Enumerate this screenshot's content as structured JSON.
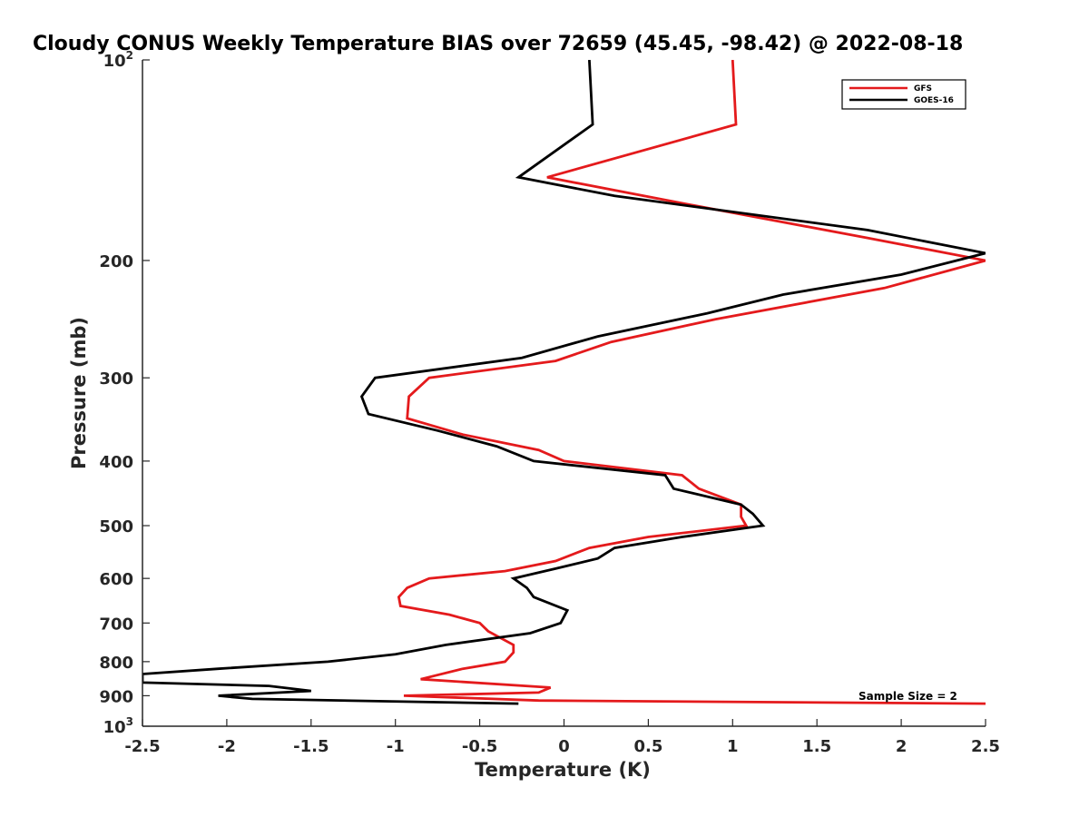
{
  "chart_data": {
    "type": "line",
    "title": "Cloudy CONUS Weekly Temperature BIAS over 72659 (45.45, -98.42) @ 2022-08-18",
    "xlabel": "Temperature (K)",
    "ylabel": "Pressure (mb)",
    "xlim": [
      -2.5,
      2.5
    ],
    "ylim": [
      100,
      1000
    ],
    "yscale": "log",
    "yreversed": true,
    "grid": false,
    "legend_position": "top-right",
    "x_ticks": [
      "-2.5",
      "-2",
      "-1.5",
      "-1",
      "-0.5",
      "0",
      "0.5",
      "1",
      "1.5",
      "2",
      "2.5"
    ],
    "x_tick_values": [
      -2.5,
      -2,
      -1.5,
      -1,
      -0.5,
      0,
      0.5,
      1,
      1.5,
      2,
      2.5
    ],
    "y_ticks": [
      {
        "value": 100,
        "label": "10",
        "exp": "2"
      },
      {
        "value": 200,
        "label": "200"
      },
      {
        "value": 300,
        "label": "300"
      },
      {
        "value": 400,
        "label": "400"
      },
      {
        "value": 500,
        "label": "500"
      },
      {
        "value": 600,
        "label": "600"
      },
      {
        "value": 700,
        "label": "700"
      },
      {
        "value": 800,
        "label": "800"
      },
      {
        "value": 900,
        "label": "900"
      },
      {
        "value": 1000,
        "label": "10",
        "exp": "3"
      }
    ],
    "annotation": "Sample Size = 2",
    "series": [
      {
        "name": "GFS",
        "color": "#e41a1c",
        "points": [
          [
            1.0,
            100
          ],
          [
            1.02,
            125
          ],
          [
            -0.1,
            150
          ],
          [
            0.75,
            165
          ],
          [
            1.8,
            185
          ],
          [
            2.5,
            200
          ],
          [
            1.9,
            220
          ],
          [
            0.9,
            245
          ],
          [
            0.28,
            265
          ],
          [
            -0.05,
            283
          ],
          [
            -0.8,
            300
          ],
          [
            -0.92,
            320
          ],
          [
            -0.93,
            345
          ],
          [
            -0.6,
            365
          ],
          [
            -0.15,
            385
          ],
          [
            0.0,
            400
          ],
          [
            0.7,
            420
          ],
          [
            0.8,
            440
          ],
          [
            1.05,
            465
          ],
          [
            1.05,
            485
          ],
          [
            1.08,
            500
          ],
          [
            0.5,
            520
          ],
          [
            0.15,
            540
          ],
          [
            -0.05,
            565
          ],
          [
            -0.35,
            585
          ],
          [
            -0.8,
            600
          ],
          [
            -0.93,
            620
          ],
          [
            -0.98,
            640
          ],
          [
            -0.97,
            660
          ],
          [
            -0.68,
            680
          ],
          [
            -0.5,
            700
          ],
          [
            -0.45,
            720
          ],
          [
            -0.3,
            755
          ],
          [
            -0.3,
            775
          ],
          [
            -0.35,
            800
          ],
          [
            -0.6,
            820
          ],
          [
            -0.85,
            850
          ],
          [
            -0.08,
            875
          ],
          [
            -0.15,
            890
          ],
          [
            -0.95,
            900
          ],
          [
            -0.15,
            915
          ],
          [
            2.5,
            925
          ]
        ]
      },
      {
        "name": "GOES-16",
        "color": "#000000",
        "points": [
          [
            0.15,
            100
          ],
          [
            0.17,
            125
          ],
          [
            -0.27,
            150
          ],
          [
            0.3,
            160
          ],
          [
            1.8,
            180
          ],
          [
            2.5,
            195
          ],
          [
            2.0,
            210
          ],
          [
            1.3,
            225
          ],
          [
            0.85,
            240
          ],
          [
            0.2,
            260
          ],
          [
            -0.25,
            280
          ],
          [
            -1.12,
            300
          ],
          [
            -1.2,
            320
          ],
          [
            -1.16,
            340
          ],
          [
            -0.75,
            360
          ],
          [
            -0.4,
            380
          ],
          [
            -0.18,
            400
          ],
          [
            0.6,
            420
          ],
          [
            0.65,
            440
          ],
          [
            1.05,
            465
          ],
          [
            1.12,
            480
          ],
          [
            1.18,
            500
          ],
          [
            0.7,
            520
          ],
          [
            0.3,
            540
          ],
          [
            0.2,
            560
          ],
          [
            -0.05,
            580
          ],
          [
            -0.3,
            600
          ],
          [
            -0.22,
            620
          ],
          [
            -0.18,
            640
          ],
          [
            0.02,
            670
          ],
          [
            -0.02,
            700
          ],
          [
            -0.2,
            725
          ],
          [
            -0.7,
            755
          ],
          [
            -1.0,
            780
          ],
          [
            -1.4,
            800
          ],
          [
            -2.05,
            820
          ],
          [
            -2.5,
            835
          ],
          [
            -2.5,
            860
          ],
          [
            -1.75,
            870
          ],
          [
            -1.5,
            885
          ],
          [
            -2.05,
            900
          ],
          [
            -1.85,
            910
          ],
          [
            -0.27,
            925
          ]
        ]
      }
    ]
  }
}
